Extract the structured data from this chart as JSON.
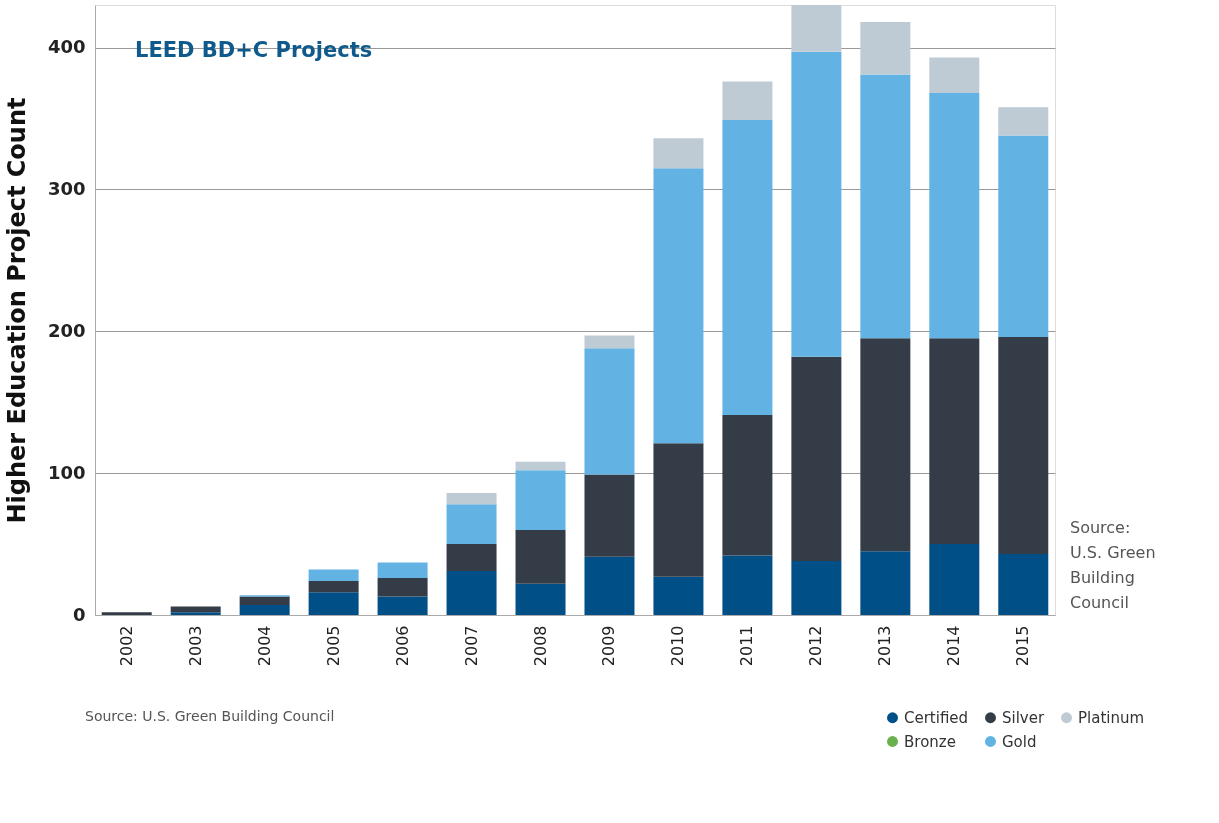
{
  "chart_data": {
    "type": "bar",
    "title": "LEED BD+C Projects",
    "ylabel": "Higher Education Project Count",
    "stacked": true,
    "categories": [
      "2002",
      "2003",
      "2004",
      "2005",
      "2006",
      "2007",
      "2008",
      "2009",
      "2010",
      "2011",
      "2012",
      "2013",
      "2014",
      "2015"
    ],
    "series": [
      {
        "name": "Certified",
        "color": "#004f86",
        "values": [
          0,
          2,
          7,
          16,
          13,
          31,
          22,
          41,
          27,
          42,
          38,
          45,
          50,
          43
        ]
      },
      {
        "name": "Bronze",
        "color": "#6ab04c",
        "values": [
          null,
          null,
          null,
          null,
          null,
          null,
          null,
          null,
          null,
          null,
          null,
          null,
          null,
          null
        ]
      },
      {
        "name": "Silver",
        "color": "#343d47",
        "values": [
          2,
          4,
          6,
          8,
          13,
          19,
          38,
          58,
          94,
          99,
          144,
          150,
          145,
          153
        ]
      },
      {
        "name": "Gold",
        "color": "#62b3e4",
        "values": [
          null,
          null,
          1,
          8,
          11,
          28,
          42,
          89,
          194,
          208,
          215,
          186,
          173,
          142
        ]
      },
      {
        "name": "Platinum",
        "color": "#bfcbd4",
        "values": [
          null,
          null,
          null,
          null,
          null,
          8,
          6,
          9,
          21,
          27,
          33,
          37,
          25,
          20
        ]
      }
    ],
    "ylim": [
      0,
      430
    ],
    "yticks": [
      0,
      100,
      200,
      300,
      400
    ],
    "grid": "y",
    "legend": "bottom right",
    "annotations": [
      "Source:\nU.S. Green\nBuilding\nCouncil",
      "Source: U.S. Green Building Council"
    ]
  }
}
